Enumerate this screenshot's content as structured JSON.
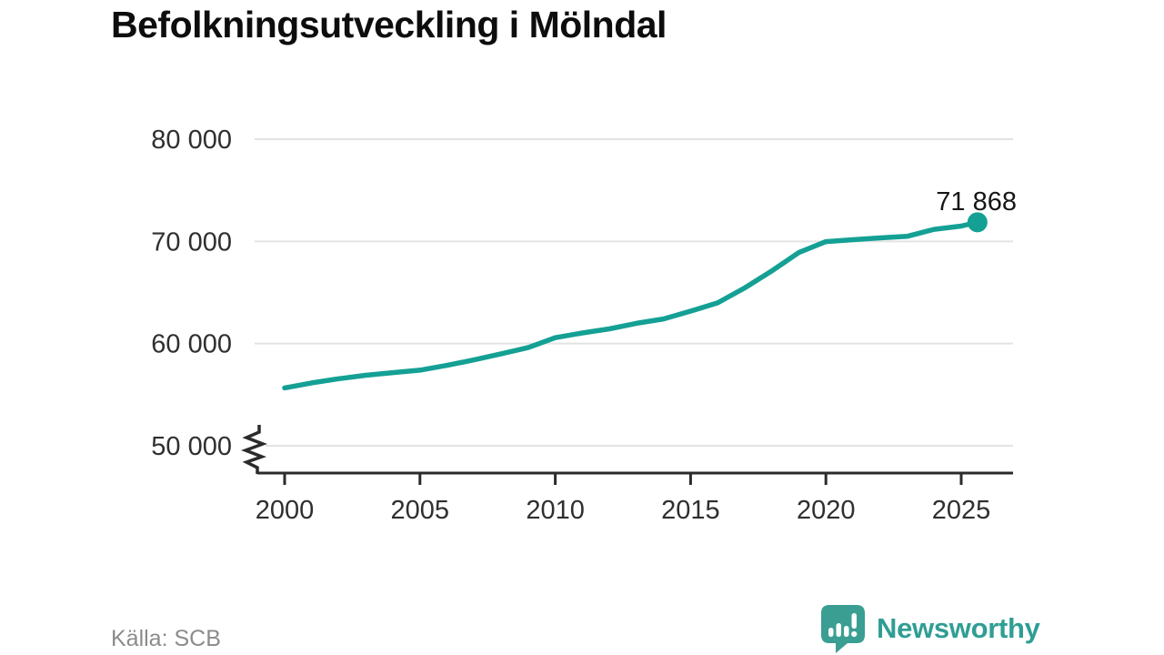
{
  "title": "Befolkningsutveckling i Mölndal",
  "source": "Källa: SCB",
  "brand": {
    "name": "Newsworthy",
    "color": "#2f9e94",
    "icon": "newsworthy-speech-bubble-chart-icon"
  },
  "annotation": {
    "label": "71 868",
    "value": 71868
  },
  "chart_data": {
    "type": "line",
    "title": "Befolkningsutveckling i Mölndal",
    "xlabel": "",
    "ylabel": "",
    "xlim": [
      1999,
      2027
    ],
    "ylim": [
      50000,
      80000
    ],
    "axis_break_at_bottom": true,
    "grid": "horizontal",
    "legend": "none",
    "line_color": "#14a094",
    "grid_color": "#e3e3e3",
    "axis_color": "#2b2b2b",
    "tick_label_color": "#2f2f2f",
    "x_ticks": [
      2000,
      2005,
      2010,
      2015,
      2020,
      2025
    ],
    "y_ticks": [
      50000,
      60000,
      70000,
      80000
    ],
    "y_tick_labels": [
      "50 000",
      "60 000",
      "70 000",
      "80 000"
    ],
    "end_label": "71 868",
    "series": [
      {
        "name": "Befolkning",
        "x": [
          2000,
          2001,
          2002,
          2003,
          2004,
          2005,
          2006,
          2007,
          2008,
          2009,
          2010,
          2011,
          2012,
          2013,
          2014,
          2015,
          2016,
          2017,
          2018,
          2019,
          2020,
          2021,
          2022,
          2023,
          2024,
          2025,
          2025.6
        ],
        "y": [
          55664,
          56148,
          56563,
          56900,
          57157,
          57395,
          57870,
          58402,
          59002,
          59605,
          60580,
          61036,
          61442,
          61978,
          62407,
          63176,
          63981,
          65443,
          67107,
          68909,
          69974,
          70167,
          70339,
          70489,
          71178,
          71500,
          71868
        ]
      }
    ]
  }
}
